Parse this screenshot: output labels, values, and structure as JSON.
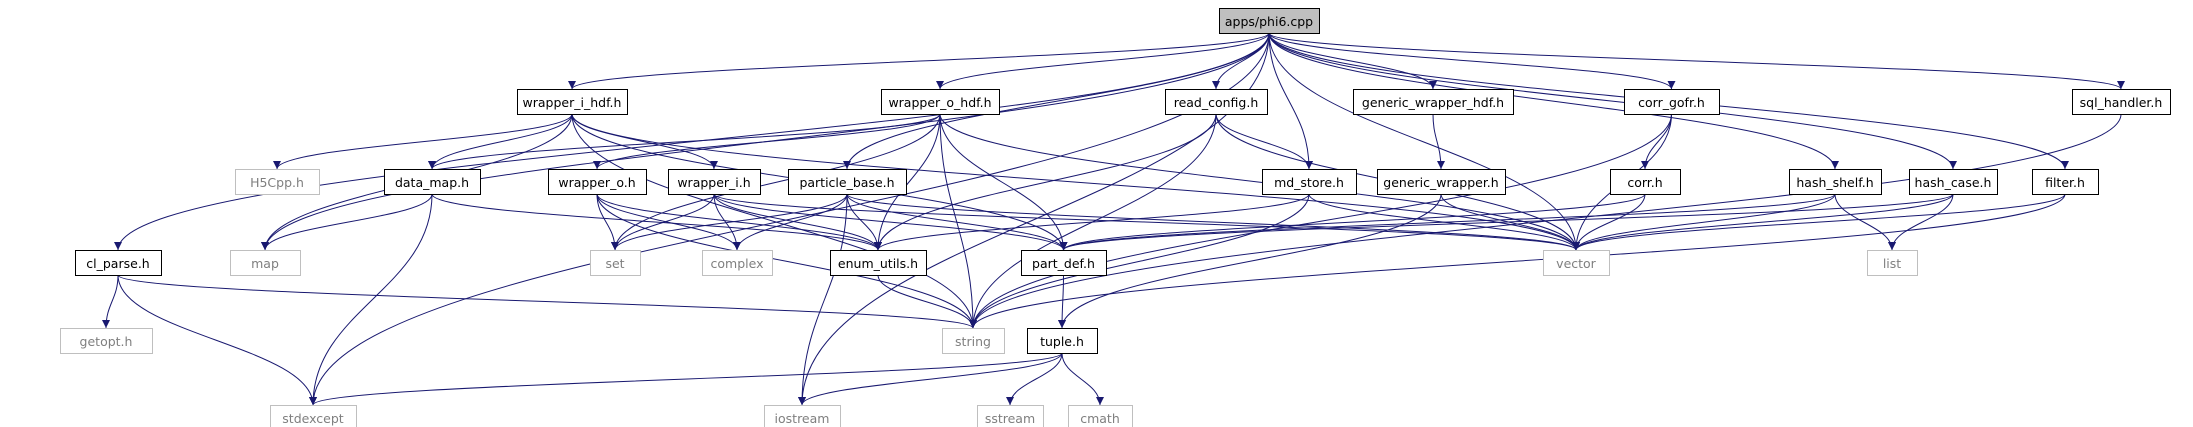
{
  "graph": {
    "root": "apps/phi6.cpp",
    "nodes": {
      "phi6": {
        "label": "apps/phi6.cpp",
        "kind": "root"
      },
      "wrapper_i_hdf": {
        "label": "wrapper_i_hdf.h",
        "kind": "local"
      },
      "wrapper_o_hdf": {
        "label": "wrapper_o_hdf.h",
        "kind": "local"
      },
      "read_config": {
        "label": "read_config.h",
        "kind": "local"
      },
      "generic_wrapper_hdf": {
        "label": "generic_wrapper_hdf.h",
        "kind": "local"
      },
      "corr_gofr": {
        "label": "corr_gofr.h",
        "kind": "local"
      },
      "sql_handler": {
        "label": "sql_handler.h",
        "kind": "local"
      },
      "H5Cpp": {
        "label": "H5Cpp.h",
        "kind": "system"
      },
      "data_map": {
        "label": "data_map.h",
        "kind": "local"
      },
      "wrapper_o": {
        "label": "wrapper_o.h",
        "kind": "local"
      },
      "wrapper_i": {
        "label": "wrapper_i.h",
        "kind": "local"
      },
      "particle_base": {
        "label": "particle_base.h",
        "kind": "local"
      },
      "md_store": {
        "label": "md_store.h",
        "kind": "local"
      },
      "generic_wrapper": {
        "label": "generic_wrapper.h",
        "kind": "local"
      },
      "corr": {
        "label": "corr.h",
        "kind": "local"
      },
      "hash_shelf": {
        "label": "hash_shelf.h",
        "kind": "local"
      },
      "hash_case": {
        "label": "hash_case.h",
        "kind": "local"
      },
      "filter": {
        "label": "filter.h",
        "kind": "local"
      },
      "cl_parse": {
        "label": "cl_parse.h",
        "kind": "local"
      },
      "map": {
        "label": "map",
        "kind": "system"
      },
      "set": {
        "label": "set",
        "kind": "system"
      },
      "complex": {
        "label": "complex",
        "kind": "system"
      },
      "enum_utils": {
        "label": "enum_utils.h",
        "kind": "local"
      },
      "part_def": {
        "label": "part_def.h",
        "kind": "local"
      },
      "vector": {
        "label": "vector",
        "kind": "system"
      },
      "list": {
        "label": "list",
        "kind": "system"
      },
      "getopt": {
        "label": "getopt.h",
        "kind": "system"
      },
      "string": {
        "label": "string",
        "kind": "system"
      },
      "tuple": {
        "label": "tuple.h",
        "kind": "local"
      },
      "stdexcept": {
        "label": "stdexcept",
        "kind": "system"
      },
      "iostream": {
        "label": "iostream",
        "kind": "system"
      },
      "sstream": {
        "label": "sstream",
        "kind": "system"
      },
      "cmath": {
        "label": "cmath",
        "kind": "system"
      }
    },
    "edges": [
      [
        "phi6",
        "wrapper_i_hdf"
      ],
      [
        "phi6",
        "wrapper_o_hdf"
      ],
      [
        "phi6",
        "read_config"
      ],
      [
        "phi6",
        "generic_wrapper_hdf"
      ],
      [
        "phi6",
        "corr_gofr"
      ],
      [
        "phi6",
        "sql_handler"
      ],
      [
        "phi6",
        "particle_base"
      ],
      [
        "phi6",
        "md_store"
      ],
      [
        "phi6",
        "hash_shelf"
      ],
      [
        "phi6",
        "hash_case"
      ],
      [
        "phi6",
        "filter"
      ],
      [
        "phi6",
        "cl_parse"
      ],
      [
        "phi6",
        "map"
      ],
      [
        "phi6",
        "vector"
      ],
      [
        "phi6",
        "iostream"
      ],
      [
        "phi6",
        "stdexcept"
      ],
      [
        "wrapper_i_hdf",
        "H5Cpp"
      ],
      [
        "wrapper_i_hdf",
        "data_map"
      ],
      [
        "wrapper_i_hdf",
        "wrapper_i"
      ],
      [
        "wrapper_i_hdf",
        "map"
      ],
      [
        "wrapper_i_hdf",
        "string"
      ],
      [
        "wrapper_i_hdf",
        "part_def"
      ],
      [
        "wrapper_i_hdf",
        "vector"
      ],
      [
        "wrapper_o_hdf",
        "data_map"
      ],
      [
        "wrapper_o_hdf",
        "wrapper_o"
      ],
      [
        "wrapper_o_hdf",
        "set"
      ],
      [
        "wrapper_o_hdf",
        "enum_utils"
      ],
      [
        "wrapper_o_hdf",
        "part_def"
      ],
      [
        "wrapper_o_hdf",
        "string"
      ],
      [
        "wrapper_o_hdf",
        "vector"
      ],
      [
        "read_config",
        "md_store"
      ],
      [
        "read_config",
        "enum_utils"
      ],
      [
        "read_config",
        "string"
      ],
      [
        "read_config",
        "vector"
      ],
      [
        "generic_wrapper_hdf",
        "generic_wrapper"
      ],
      [
        "corr_gofr",
        "corr"
      ],
      [
        "corr_gofr",
        "vector"
      ],
      [
        "corr_gofr",
        "string"
      ],
      [
        "sql_handler",
        "string"
      ],
      [
        "data_map",
        "map"
      ],
      [
        "data_map",
        "enum_utils"
      ],
      [
        "data_map",
        "stdexcept"
      ],
      [
        "wrapper_o",
        "set"
      ],
      [
        "wrapper_o",
        "complex"
      ],
      [
        "wrapper_o",
        "enum_utils"
      ],
      [
        "wrapper_o",
        "string"
      ],
      [
        "wrapper_i",
        "set"
      ],
      [
        "wrapper_i",
        "complex"
      ],
      [
        "wrapper_i",
        "enum_utils"
      ],
      [
        "wrapper_i",
        "part_def"
      ],
      [
        "wrapper_i",
        "vector"
      ],
      [
        "particle_base",
        "set"
      ],
      [
        "particle_base",
        "complex"
      ],
      [
        "particle_base",
        "enum_utils"
      ],
      [
        "particle_base",
        "part_def"
      ],
      [
        "particle_base",
        "iostream"
      ],
      [
        "particle_base",
        "vector"
      ],
      [
        "md_store",
        "enum_utils"
      ],
      [
        "md_store",
        "string"
      ],
      [
        "md_store",
        "vector"
      ],
      [
        "generic_wrapper",
        "vector"
      ],
      [
        "generic_wrapper",
        "tuple"
      ],
      [
        "corr",
        "part_def"
      ],
      [
        "corr",
        "vector"
      ],
      [
        "hash_shelf",
        "list"
      ],
      [
        "hash_shelf",
        "vector"
      ],
      [
        "hash_shelf",
        "part_def"
      ],
      [
        "hash_case",
        "list"
      ],
      [
        "hash_case",
        "vector"
      ],
      [
        "hash_case",
        "part_def"
      ],
      [
        "filter",
        "vector"
      ],
      [
        "filter",
        "string"
      ],
      [
        "cl_parse",
        "getopt"
      ],
      [
        "cl_parse",
        "string"
      ],
      [
        "cl_parse",
        "stdexcept"
      ],
      [
        "enum_utils",
        "string"
      ],
      [
        "part_def",
        "tuple"
      ],
      [
        "tuple",
        "stdexcept"
      ],
      [
        "tuple",
        "iostream"
      ],
      [
        "tuple",
        "sstream"
      ],
      [
        "tuple",
        "cmath"
      ]
    ]
  }
}
